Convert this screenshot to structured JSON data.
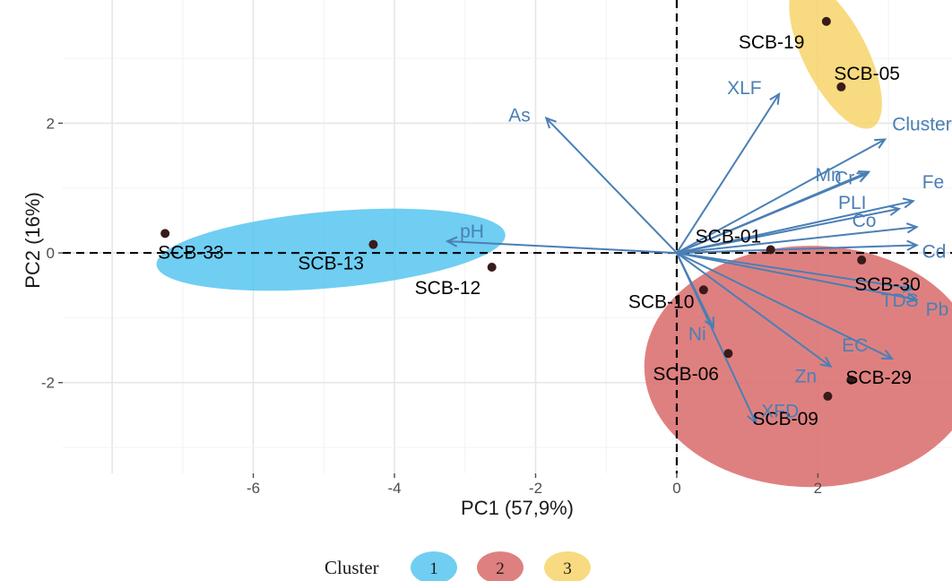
{
  "chart_data": {
    "type": "scatter",
    "subtype": "pca-biplot",
    "xlabel": "PC1 (57,9%)",
    "ylabel": "PC2 (16%)",
    "xlim": [
      -8.7,
      3.9
    ],
    "ylim": [
      -3.4,
      3.9
    ],
    "xticks": [
      -6,
      -4,
      -2,
      0,
      2
    ],
    "xtick_labels": [
      "-6",
      "-4",
      "-2",
      "0",
      "2"
    ],
    "yticks": [
      -2,
      0,
      2
    ],
    "ytick_labels": [
      "-2",
      "0",
      "2"
    ],
    "grid": true,
    "reference_lines": {
      "x": 0,
      "y": 0,
      "style": "dashed"
    },
    "colors": {
      "cluster_1": "#56c5f0",
      "cluster_2": "#d96a6a",
      "cluster_3": "#f7d36b",
      "arrow": "#4a7fb5",
      "arrow_label": "#4a7fb5",
      "point": "#3a1a1a",
      "grid": "#ebebeb"
    },
    "points": [
      {
        "label": "SCB-33",
        "x": -7.25,
        "y": 0.3,
        "cluster": 1
      },
      {
        "label": "SCB-13",
        "x": -4.3,
        "y": 0.13,
        "cluster": 1
      },
      {
        "label": "SCB-12",
        "x": -2.62,
        "y": -0.22,
        "cluster": 1
      },
      {
        "label": "SCB-01",
        "x": 1.33,
        "y": 0.05,
        "cluster": 2
      },
      {
        "label": "SCB-30",
        "x": 2.62,
        "y": -0.11,
        "cluster": 2
      },
      {
        "label": "SCB-10",
        "x": 0.38,
        "y": -0.57,
        "cluster": 2
      },
      {
        "label": "SCB-06",
        "x": 0.73,
        "y": -1.55,
        "cluster": 2
      },
      {
        "label": "SCB-29",
        "x": 2.47,
        "y": -1.96,
        "cluster": 2
      },
      {
        "label": "SCB-09",
        "x": 2.14,
        "y": -2.21,
        "cluster": 2
      },
      {
        "label": "SCB-19",
        "x": 2.12,
        "y": 3.57,
        "cluster": 3
      },
      {
        "label": "SCB-05",
        "x": 2.33,
        "y": 2.56,
        "cluster": 3
      }
    ],
    "ellipses": [
      {
        "cluster": 1,
        "cx": -4.9,
        "cy": 0.05,
        "rx": 2.48,
        "ry": 0.59,
        "angle_deg": 5
      },
      {
        "cluster": 2,
        "cx": 1.9,
        "cy": -1.75,
        "rx": 2.36,
        "ry": 1.86,
        "angle_deg": 0
      },
      {
        "cluster": 3,
        "cx": 2.25,
        "cy": 3.05,
        "rx": 0.45,
        "ry": 1.25,
        "angle_deg": 27
      }
    ],
    "variables": [
      {
        "label": "XLF",
        "x": 1.45,
        "y": 2.45
      },
      {
        "label": "As",
        "x": -1.85,
        "y": 2.08
      },
      {
        "label": "Cluster",
        "x": 2.95,
        "y": 1.75
      },
      {
        "label": "Cr",
        "x": 2.72,
        "y": 1.25
      },
      {
        "label": "Mn",
        "x": 2.7,
        "y": 1.22
      },
      {
        "label": "PLI",
        "x": 3.15,
        "y": 0.68
      },
      {
        "label": "Fe",
        "x": 3.35,
        "y": 0.8
      },
      {
        "label": "Co",
        "x": 3.4,
        "y": 0.4
      },
      {
        "label": "Cd",
        "x": 3.4,
        "y": 0.12
      },
      {
        "label": "pH",
        "x": -3.25,
        "y": 0.18
      },
      {
        "label": "Pb",
        "x": 3.4,
        "y": -0.72
      },
      {
        "label": "Ni",
        "x": 0.52,
        "y": -1.15
      },
      {
        "label": "EC",
        "x": 3.05,
        "y": -1.63
      },
      {
        "label": "TDS",
        "x": 3.35,
        "y": -0.55
      },
      {
        "label": "Zn",
        "x": 2.18,
        "y": -1.75
      },
      {
        "label": "XFD",
        "x": 1.12,
        "y": -2.62
      }
    ],
    "legend": {
      "title": "Cluster",
      "placement": "bottom",
      "entries": [
        "1",
        "2",
        "3"
      ]
    }
  }
}
